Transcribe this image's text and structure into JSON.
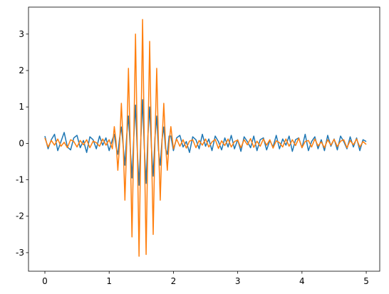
{
  "chart_data": {
    "type": "line",
    "x": [
      0,
      0.05,
      0.1,
      0.15,
      0.2,
      0.25,
      0.3,
      0.35,
      0.4,
      0.45,
      0.5,
      0.55,
      0.6,
      0.65,
      0.7,
      0.75,
      0.8,
      0.85,
      0.9,
      0.95,
      1.0,
      1.05,
      1.08,
      1.1075,
      1.135,
      1.1625,
      1.19,
      1.2175,
      1.245,
      1.2725,
      1.3,
      1.3275,
      1.355,
      1.3825,
      1.41,
      1.4375,
      1.465,
      1.4925,
      1.52,
      1.5475,
      1.575,
      1.6025,
      1.63,
      1.6575,
      1.685,
      1.7125,
      1.74,
      1.7675,
      1.795,
      1.8225,
      1.85,
      1.8775,
      1.905,
      1.9325,
      1.96,
      2.0,
      2.05,
      2.1,
      2.15,
      2.2,
      2.25,
      2.3,
      2.35,
      2.4,
      2.45,
      2.5,
      2.55,
      2.6,
      2.65,
      2.7,
      2.75,
      2.8,
      2.85,
      2.9,
      2.95,
      3.0,
      3.05,
      3.1,
      3.15,
      3.2,
      3.25,
      3.3,
      3.35,
      3.4,
      3.45,
      3.5,
      3.55,
      3.6,
      3.65,
      3.7,
      3.75,
      3.8,
      3.85,
      3.9,
      3.95,
      4.0,
      4.05,
      4.1,
      4.15,
      4.2,
      4.25,
      4.3,
      4.35,
      4.4,
      4.45,
      4.5,
      4.55,
      4.6,
      4.65,
      4.7,
      4.75,
      4.8,
      4.85,
      4.9,
      4.95,
      5.0
    ],
    "series": [
      {
        "color": "#1f77b4",
        "values": [
          0.2,
          -0.15,
          0.1,
          0.25,
          -0.2,
          0.05,
          0.3,
          -0.1,
          -0.18,
          0.15,
          0.22,
          -0.12,
          0.08,
          -0.25,
          0.18,
          0.1,
          -0.15,
          0.2,
          -0.05,
          0.15,
          -0.2,
          0.1,
          0.25,
          -0.1,
          -0.3,
          0.15,
          0.45,
          -0.05,
          -0.6,
          0.2,
          0.75,
          -0.1,
          -0.95,
          0.15,
          1.05,
          -0.2,
          -1.15,
          0.1,
          1.2,
          -0.15,
          -1.1,
          0.2,
          1.0,
          -0.1,
          -0.9,
          0.15,
          0.75,
          -0.2,
          -0.6,
          0.1,
          0.45,
          -0.15,
          -0.3,
          0.2,
          0.2,
          -0.2,
          0.15,
          0.22,
          -0.1,
          0.05,
          -0.25,
          0.18,
          0.1,
          -0.15,
          0.25,
          -0.08,
          0.12,
          -0.2,
          0.2,
          0.05,
          -0.18,
          0.15,
          -0.1,
          0.22,
          -0.15,
          0.1,
          -0.22,
          0.18,
          0.05,
          -0.12,
          0.2,
          -0.2,
          0.1,
          0.15,
          -0.18,
          0.08,
          -0.1,
          0.22,
          -0.15,
          0.12,
          -0.05,
          0.2,
          -0.22,
          0.1,
          0.15,
          -0.12,
          0.25,
          -0.2,
          0.05,
          0.18,
          -0.15,
          0.1,
          -0.2,
          0.22,
          -0.08,
          0.12,
          -0.18,
          0.2,
          0.05,
          -0.15,
          0.18,
          -0.1,
          0.15,
          -0.2,
          0.1,
          0.05
        ]
      },
      {
        "color": "#ff7f0e",
        "values": [
          0.15,
          -0.1,
          0.08,
          -0.05,
          0.12,
          -0.08,
          0.03,
          -0.12,
          0.1,
          0.05,
          -0.1,
          0.08,
          -0.04,
          0.1,
          -0.12,
          0.06,
          0.02,
          -0.08,
          0.12,
          -0.05,
          0.1,
          -0.15,
          0.46,
          0.05,
          -0.74,
          -0.03,
          1.1,
          0.02,
          -1.56,
          -0.04,
          2.06,
          0.03,
          -2.57,
          0.05,
          3.0,
          -0.02,
          -3.1,
          0.04,
          3.4,
          -0.03,
          -3.05,
          0.02,
          2.8,
          -0.04,
          -2.5,
          0.03,
          2.06,
          -0.02,
          -1.56,
          0.04,
          1.1,
          -0.03,
          -0.74,
          0.02,
          0.46,
          -0.15,
          0.12,
          -0.08,
          0.1,
          -0.13,
          0.06,
          0.1,
          -0.12,
          0.08,
          -0.05,
          0.12,
          -0.1,
          0.04,
          0.11,
          -0.14,
          0.07,
          -0.06,
          0.12,
          -0.1,
          0.05,
          0.09,
          -0.12,
          0.1,
          -0.04,
          0.13,
          -0.11,
          0.06,
          -0.08,
          0.12,
          -0.05,
          0.1,
          -0.13,
          0.07,
          0.02,
          -0.1,
          0.12,
          -0.08,
          0.1,
          -0.06,
          0.14,
          -0.12,
          0.05,
          0.08,
          -0.1,
          0.12,
          -0.07,
          0.04,
          -0.12,
          0.1,
          -0.05,
          0.11,
          -0.09,
          0.06,
          0.1,
          -0.12,
          0.08,
          -0.04,
          0.12,
          -0.1,
          0.05,
          -0.03
        ]
      }
    ],
    "xlim": [
      -0.255,
      5.21
    ],
    "ylim": [
      -3.51,
      3.74
    ],
    "xticks": [
      0,
      1,
      2,
      3,
      4,
      5
    ],
    "yticks": [
      -3,
      -2,
      -1,
      0,
      1,
      2,
      3
    ]
  }
}
